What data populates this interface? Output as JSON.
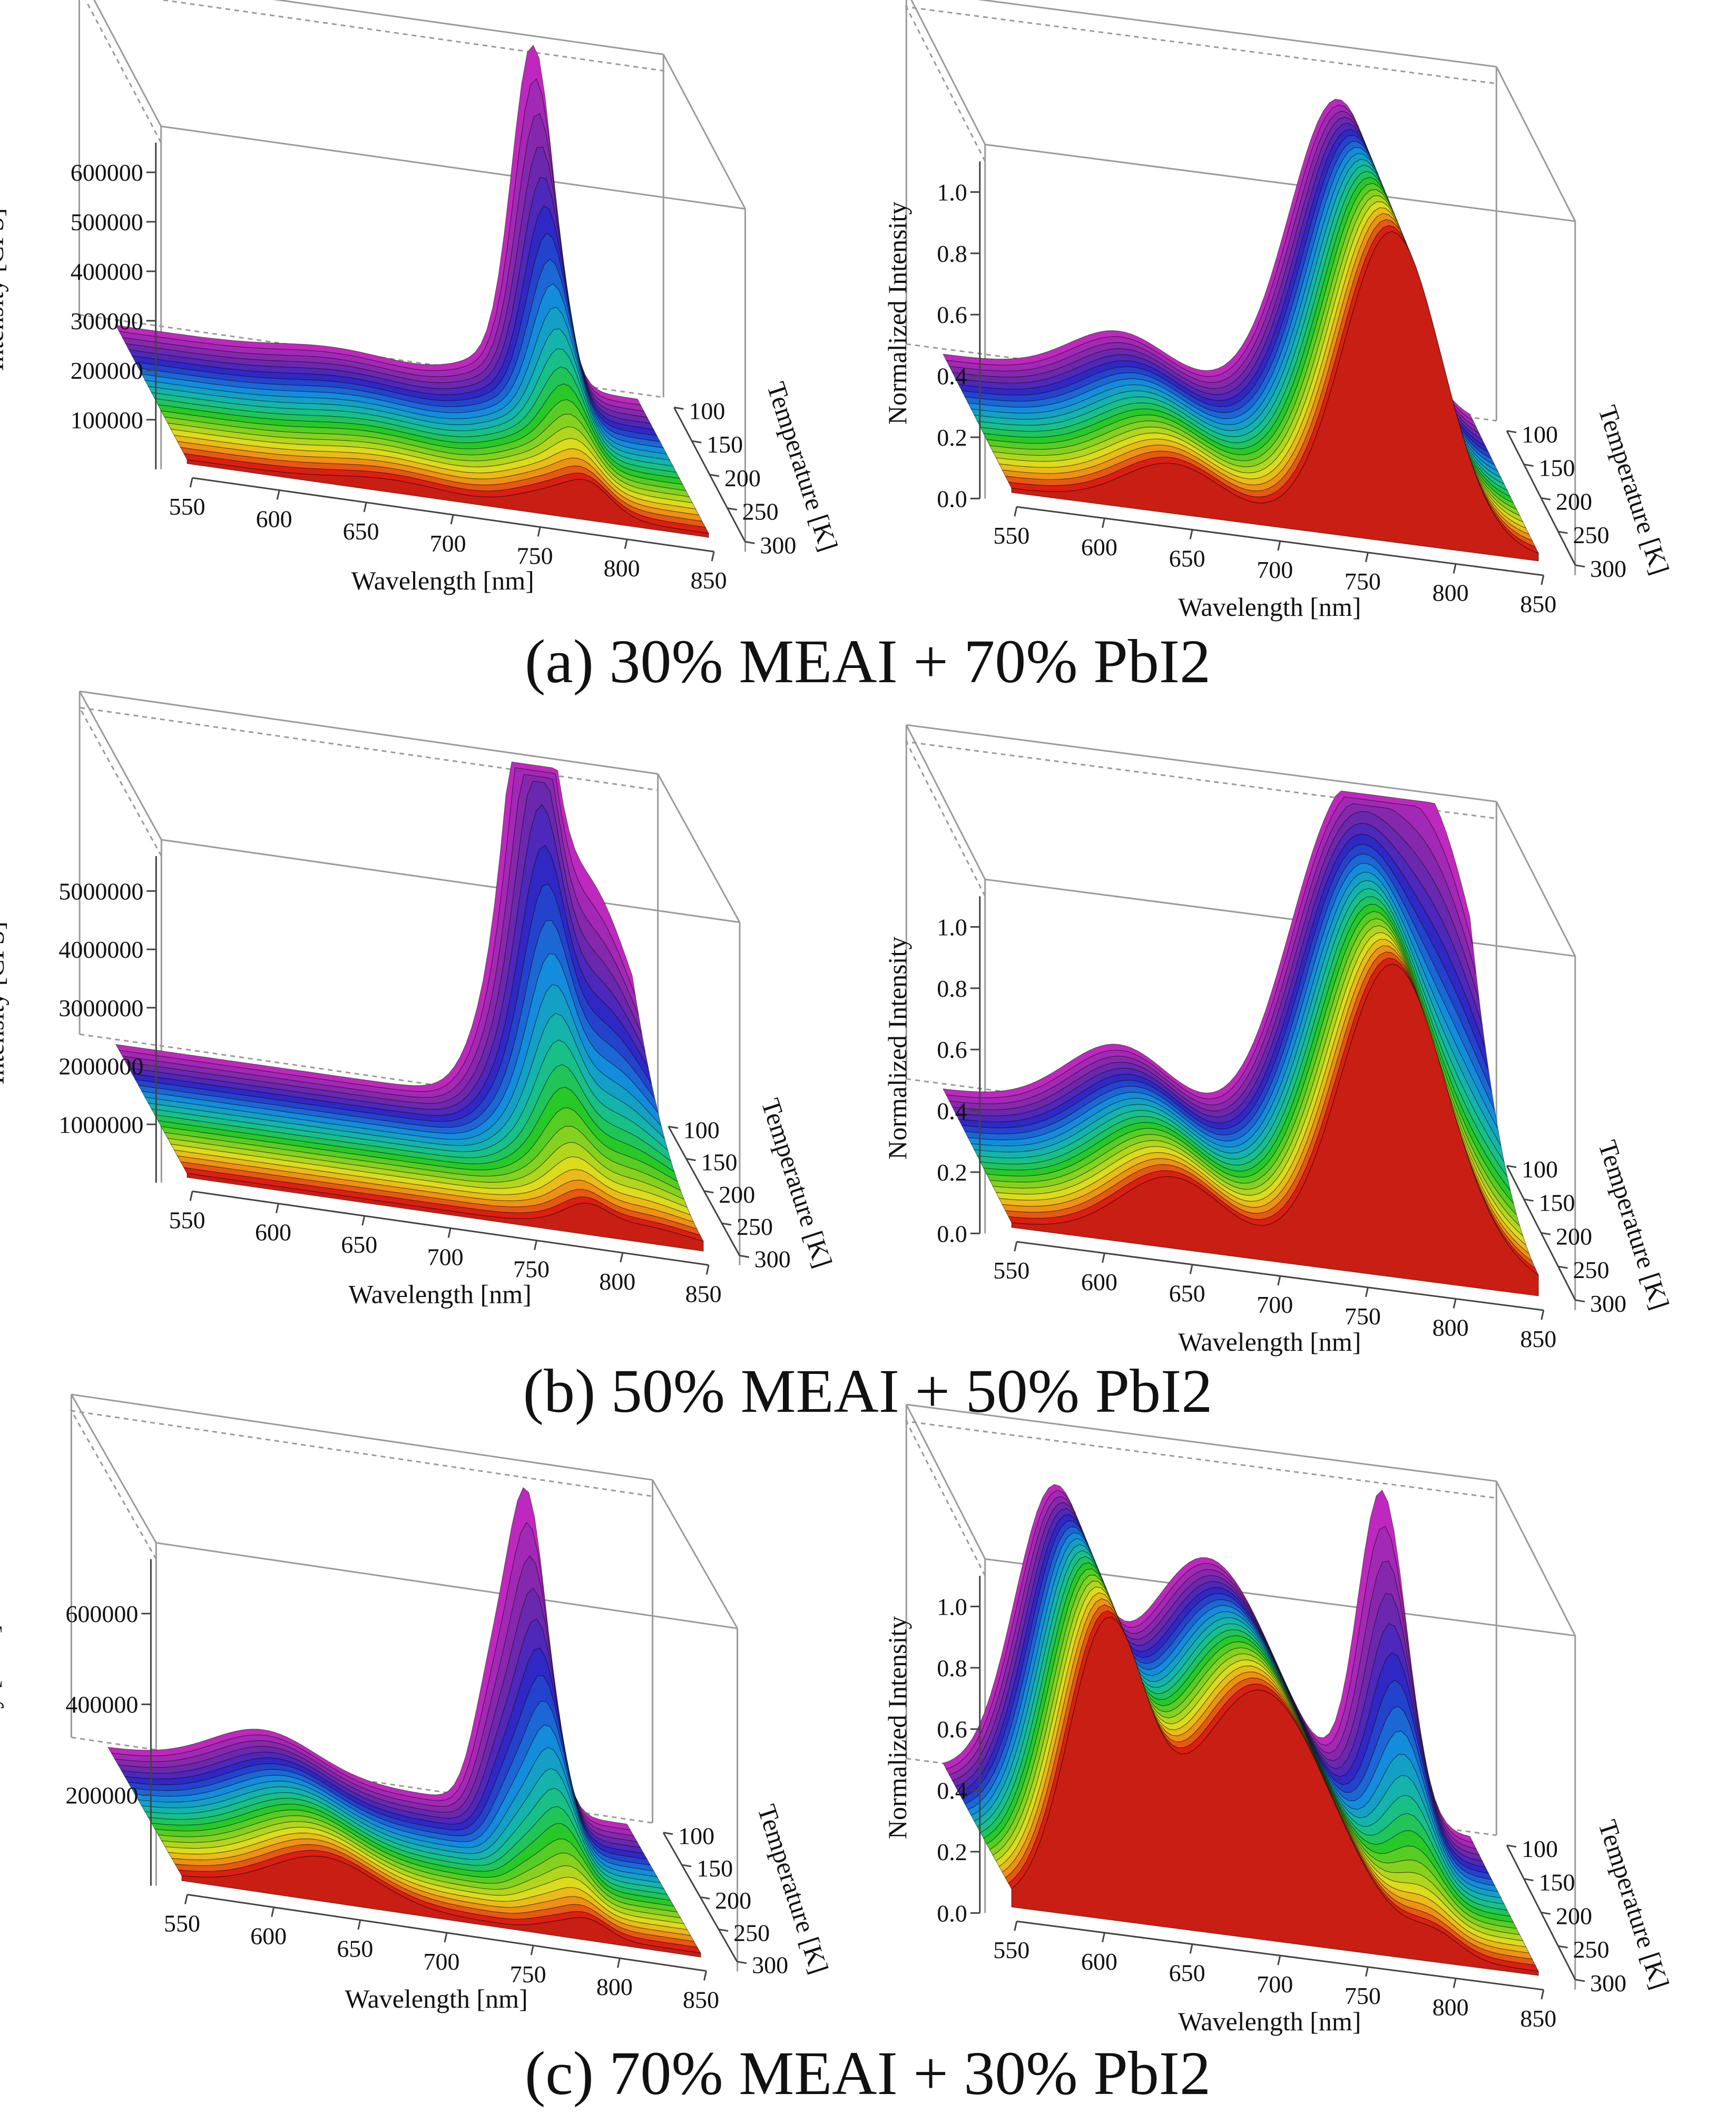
{
  "chart_data": [
    {
      "type": "surface3d",
      "panel": "a-left",
      "xlabel": "Wavelength [nm]",
      "ylabel": "Intensity [CPS]",
      "zlabel": "Temperature [K]",
      "x_ticks": [
        550,
        600,
        650,
        700,
        750,
        800,
        850
      ],
      "y_ticks": [
        "100000",
        "200000",
        "300000",
        "400000",
        "500000",
        "600000"
      ],
      "temp_ticks": [
        100,
        150,
        200,
        250,
        300
      ],
      "xlim": [
        540,
        870
      ],
      "ylim": [
        0,
        660000
      ],
      "peaks": [
        {
          "wavelength": 675,
          "amp": 18000,
          "width": 30
        },
        {
          "wavelength": 773,
          "amp": 45000,
          "width": 22
        },
        {
          "wavelength": 790,
          "amp": 620000,
          "width": 12,
          "cold_only": true
        }
      ]
    },
    {
      "type": "surface3d",
      "panel": "a-right",
      "xlabel": "Wavelength [nm]",
      "ylabel": "Normalized Intensity",
      "zlabel": "Temperature [K]",
      "x_ticks": [
        550,
        600,
        650,
        700,
        750,
        800,
        850
      ],
      "y_ticks": [
        "0.0",
        "0.2",
        "0.4",
        "0.6",
        "0.8",
        "1.0"
      ],
      "temp_ticks": [
        100,
        150,
        200,
        250,
        300
      ],
      "xlim": [
        540,
        870
      ],
      "ylim": [
        0,
        1.1
      ],
      "peaks": [
        {
          "wavelength": 650,
          "amp": 0.15,
          "width": 28
        },
        {
          "wavelength": 775,
          "amp": 1.0,
          "width": 28
        }
      ]
    },
    {
      "type": "surface3d",
      "panel": "b-left",
      "xlabel": "Wavelength [nm]",
      "ylabel": "Intensity [CPS]",
      "zlabel": "Temperature [K]",
      "x_ticks": [
        550,
        600,
        650,
        700,
        750,
        800,
        850
      ],
      "y_ticks": [
        "1000000",
        "2000000",
        "3000000",
        "4000000",
        "5000000"
      ],
      "temp_ticks": [
        100,
        150,
        200,
        250,
        300
      ],
      "xlim": [
        540,
        870
      ],
      "ylim": [
        0,
        5600000
      ],
      "peaks": [
        {
          "wavelength": 770,
          "amp": 900000,
          "width": 14,
          "cold_only": true
        },
        {
          "wavelength": 790,
          "amp": 5200000,
          "width": 12,
          "cold_only": true
        },
        {
          "wavelength": 820,
          "amp": 3800000,
          "width": 30,
          "cold_only": true
        }
      ]
    },
    {
      "type": "surface3d",
      "panel": "b-right",
      "xlabel": "Wavelength [nm]",
      "ylabel": "Normalized Intensity",
      "zlabel": "Temperature [K]",
      "x_ticks": [
        550,
        600,
        650,
        700,
        750,
        800,
        850
      ],
      "y_ticks": [
        "0.0",
        "0.2",
        "0.4",
        "0.6",
        "0.8",
        "1.0"
      ],
      "temp_ticks": [
        100,
        150,
        200,
        250,
        300
      ],
      "xlim": [
        540,
        870
      ],
      "ylim": [
        0,
        1.1
      ],
      "peaks": [
        {
          "wavelength": 650,
          "amp": 0.22,
          "width": 30
        },
        {
          "wavelength": 775,
          "amp": 1.0,
          "width": 30
        },
        {
          "wavelength": 830,
          "amp": 0.9,
          "width": 28,
          "cold_only": true
        }
      ]
    },
    {
      "type": "surface3d",
      "panel": "c-left",
      "xlabel": "Wavelength [nm]",
      "ylabel": "Intensity [CPS]",
      "zlabel": "Temperature [K]",
      "x_ticks": [
        550,
        600,
        650,
        700,
        750,
        800,
        850
      ],
      "y_ticks": [
        "200000",
        "400000",
        "600000"
      ],
      "temp_ticks": [
        100,
        150,
        200,
        250,
        300
      ],
      "xlim": [
        540,
        870
      ],
      "ylim": [
        0,
        720000
      ],
      "peaks": [
        {
          "wavelength": 640,
          "amp": 90000,
          "width": 30
        },
        {
          "wavelength": 770,
          "amp": 200000,
          "width": 10,
          "cold_only": true
        },
        {
          "wavelength": 792,
          "amp": 650000,
          "width": 12,
          "cold_only": true
        }
      ]
    },
    {
      "type": "surface3d",
      "panel": "c-right",
      "xlabel": "Wavelength [nm]",
      "ylabel": "Normalized Intensity",
      "zlabel": "Temperature [K]",
      "x_ticks": [
        550,
        600,
        650,
        700,
        750,
        800,
        850
      ],
      "y_ticks": [
        "0.0",
        "0.2",
        "0.4",
        "0.6",
        "0.8",
        "1.0"
      ],
      "temp_ticks": [
        100,
        150,
        200,
        250,
        300
      ],
      "xlim": [
        540,
        870
      ],
      "ylim": [
        0,
        1.1
      ],
      "peaks": [
        {
          "wavelength": 612,
          "amp": 0.9,
          "width": 22
        },
        {
          "wavelength": 700,
          "amp": 0.8,
          "width": 40
        },
        {
          "wavelength": 800,
          "amp": 1.0,
          "width": 14,
          "cold_only": true
        }
      ]
    }
  ],
  "captions": {
    "a": "(a) 30% MEAI + 70% PbI2",
    "b": "(b) 50% MEAI + 50% PbI2",
    "c": "(c) 70% MEAI + 30% PbI2"
  }
}
